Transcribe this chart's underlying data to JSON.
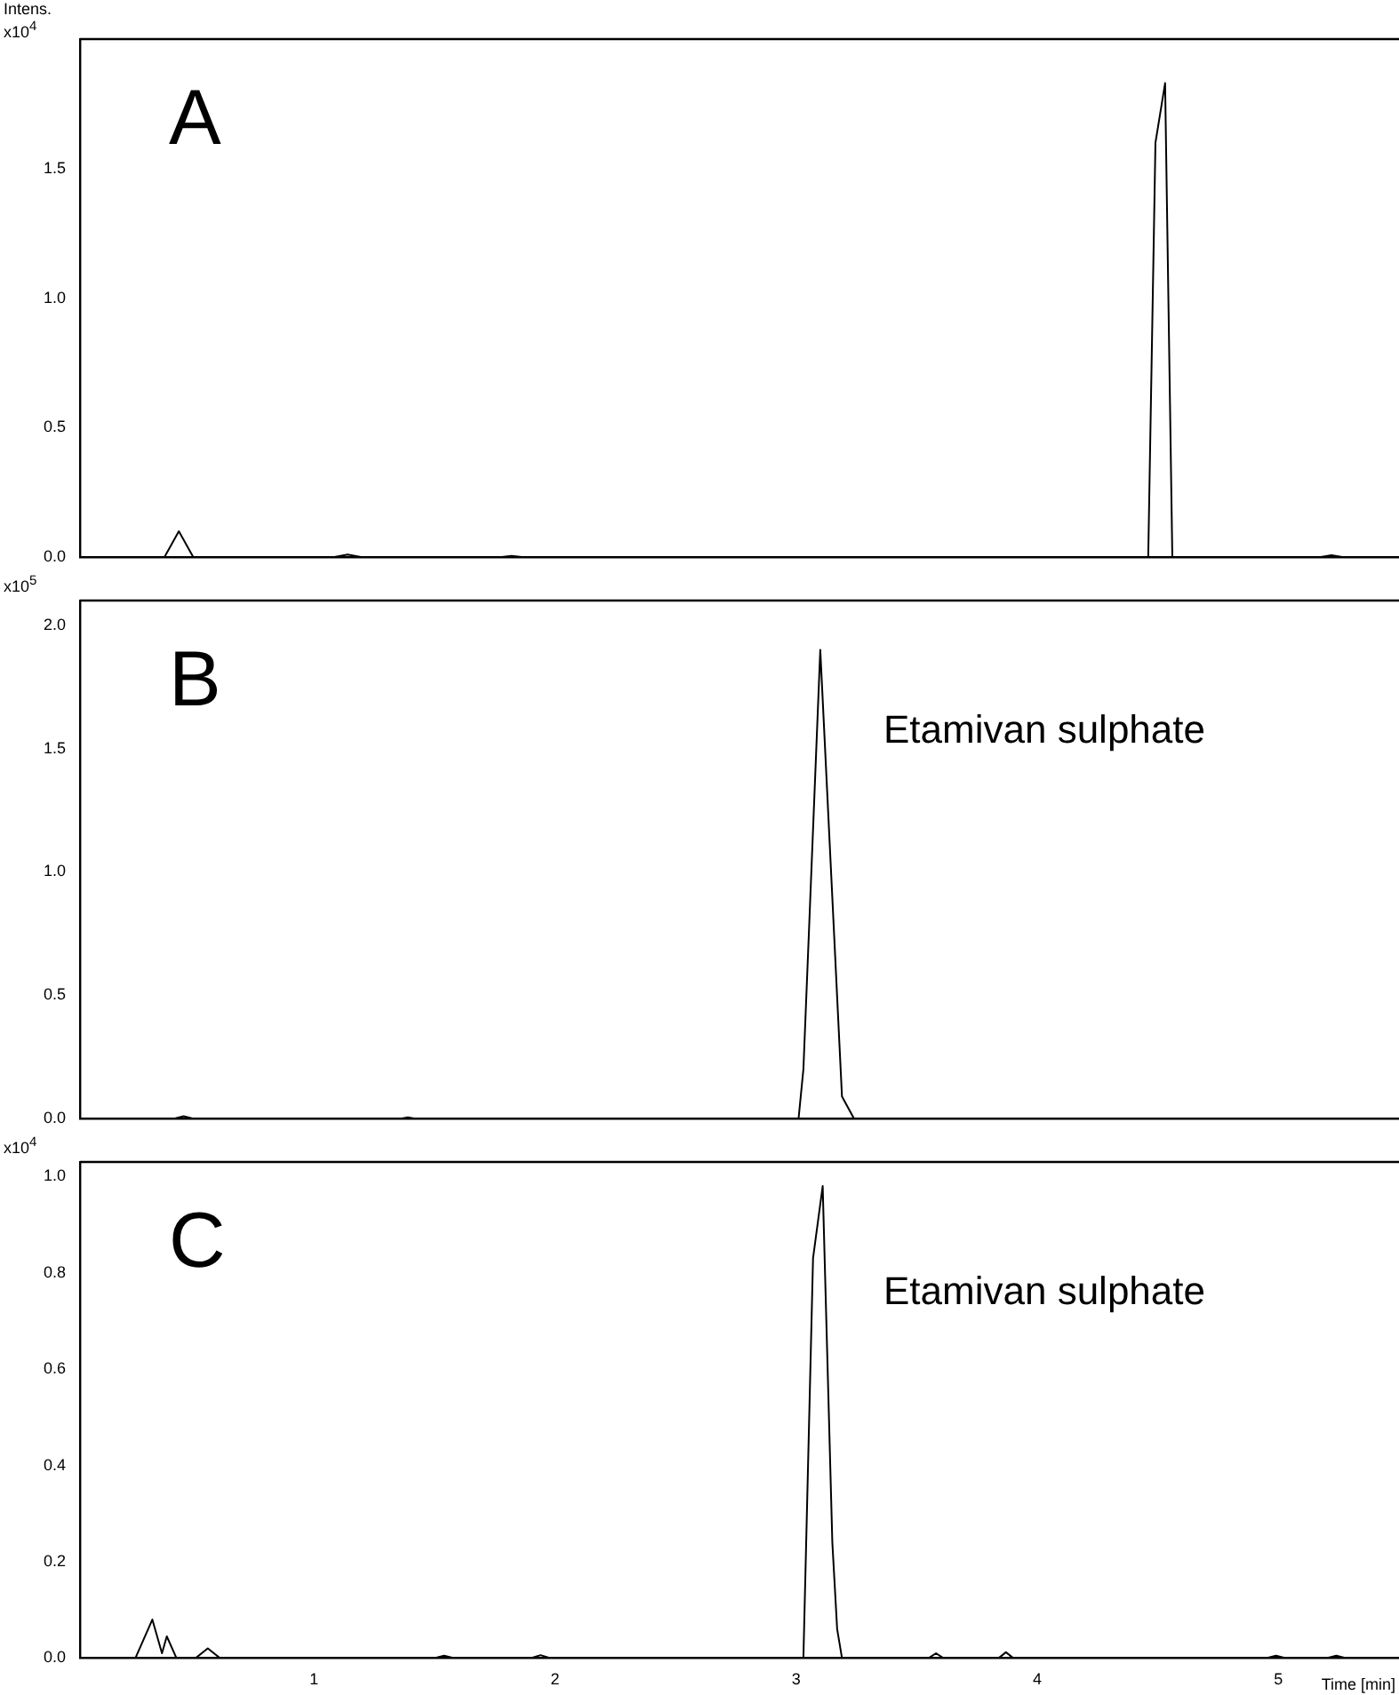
{
  "chart_data": [
    {
      "type": "line",
      "ylabel": "Intens. x10$^{4}$",
      "annotations": [
        "A"
      ],
      "marker": "none",
      "tick_labels": "y",
      "xlim": [
        0.03,
        5.5
      ],
      "xticks": [
        1,
        2,
        3,
        4,
        5
      ],
      "ylim": [
        0,
        2.0
      ],
      "yticks": [
        {
          "value": 0,
          "label": "0.0"
        },
        0.5,
        {
          "value": 1,
          "label": "1.0"
        },
        1.5
      ],
      "series": [
        {
          "color": "#000000",
          "x": [
            0.03,
            0.38,
            0.44,
            0.5,
            1.08,
            1.14,
            1.2,
            1.77,
            1.82,
            1.87,
            4.44,
            4.46,
            4.49,
            4.53,
            4.56,
            4.58,
            5.17,
            5.22,
            5.27,
            5.5
          ],
          "values": [
            0,
            0,
            0.1,
            0,
            0,
            0.01,
            0,
            0,
            0.005,
            0,
            0,
            0,
            1.6,
            1.83,
            0,
            0,
            0,
            0.008,
            0,
            0
          ]
        }
      ]
    },
    {
      "type": "line",
      "ylabel": "x10$^{5}$",
      "annotations": [
        "B",
        "Etamivan sulphate"
      ],
      "marker": "none",
      "tick_labels": "y",
      "xlim": [
        0.03,
        5.5
      ],
      "xticks": [
        1,
        2,
        3,
        4,
        5
      ],
      "ylim": [
        0,
        2.1
      ],
      "yticks": [
        {
          "value": 0,
          "label": "0.0"
        },
        0.5,
        {
          "value": 1,
          "label": "1.0"
        },
        1.5,
        {
          "value": 2,
          "label": "2.0"
        }
      ],
      "series": [
        {
          "color": "#000000",
          "x": [
            0.03,
            0.42,
            0.46,
            0.5,
            1.36,
            1.39,
            1.42,
            3.0,
            3.01,
            3.03,
            3.1,
            3.19,
            3.24,
            3.3,
            5.5
          ],
          "values": [
            0,
            0,
            0.01,
            0,
            0,
            0.005,
            0,
            0,
            0,
            0.2,
            1.9,
            0.09,
            0,
            0,
            0
          ]
        }
      ]
    },
    {
      "type": "line",
      "ylabel": "x10$^{4}$",
      "xlabel": "Time [min]",
      "annotations": [
        "C",
        "Etamivan sulphate"
      ],
      "marker": "none",
      "xlim": [
        0.03,
        5.5
      ],
      "xticks": [
        1,
        2,
        3,
        4,
        5
      ],
      "ylim": [
        0,
        1.03
      ],
      "yticks": [
        {
          "value": 0,
          "label": "0.0"
        },
        0.2,
        0.4,
        0.6,
        0.8,
        {
          "value": 1,
          "label": "1.0"
        }
      ],
      "series": [
        {
          "color": "#000000",
          "x": [
            0.03,
            0.26,
            0.33,
            0.37,
            0.39,
            0.43,
            0.51,
            0.56,
            0.61,
            1.5,
            1.54,
            1.58,
            1.9,
            1.94,
            1.98,
            3.03,
            3.07,
            3.11,
            3.15,
            3.17,
            3.19,
            3.55,
            3.58,
            3.61,
            3.84,
            3.87,
            3.9,
            4.95,
            4.99,
            5.03,
            5.2,
            5.24,
            5.28,
            5.5
          ],
          "values": [
            0,
            0,
            0.08,
            0.01,
            0.045,
            0,
            0,
            0.02,
            0,
            0,
            0.005,
            0,
            0,
            0.006,
            0,
            0,
            0.83,
            0.98,
            0.24,
            0.06,
            0,
            0,
            0.01,
            0,
            0,
            0.012,
            0,
            0,
            0.005,
            0,
            0,
            0.005,
            0,
            0
          ]
        }
      ]
    }
  ]
}
